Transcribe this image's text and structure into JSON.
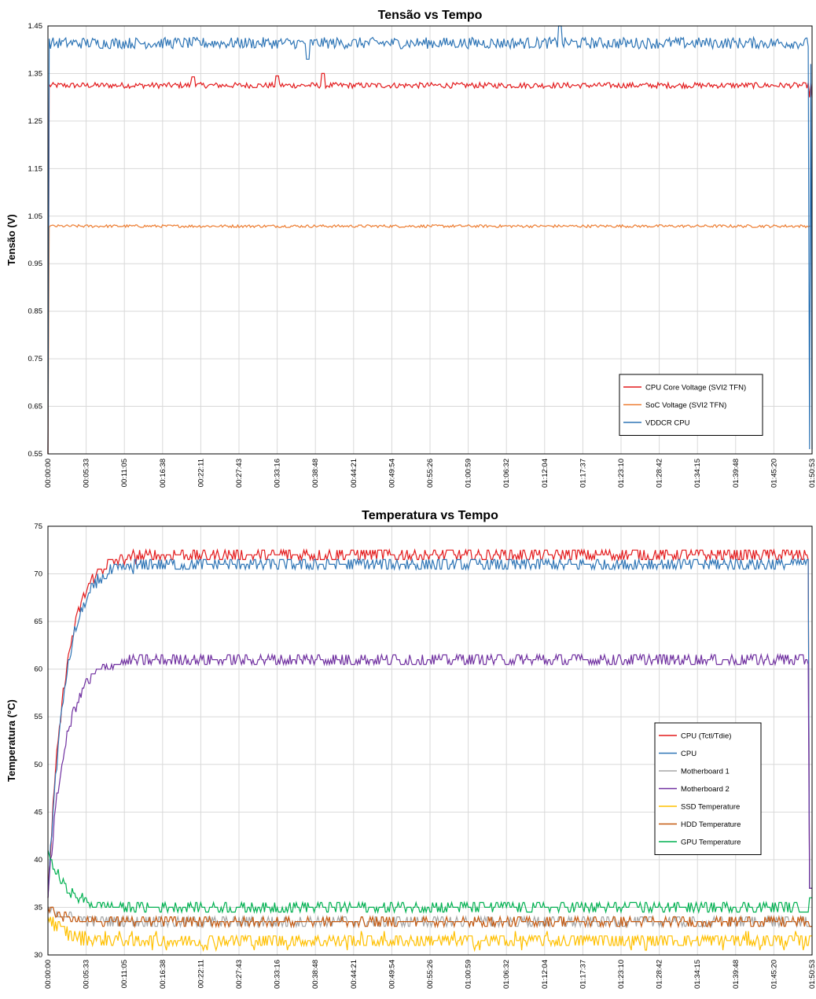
{
  "chart_data": [
    {
      "type": "line",
      "title": "Tensão vs Tempo",
      "ylabel": "Tensão (V)",
      "xlabel": "",
      "ylim": [
        0.55,
        1.45
      ],
      "yticks": [
        "1.45",
        "1.35",
        "1.25",
        "1.15",
        "1.05",
        "0.95",
        "0.85",
        "0.75",
        "0.65",
        "0.55"
      ],
      "xticks": [
        "00:00:00",
        "00:05:33",
        "00:11:05",
        "00:16:38",
        "00:22:11",
        "00:27:43",
        "00:33:16",
        "00:38:48",
        "00:44:21",
        "00:49:54",
        "00:55:26",
        "01:00:59",
        "01:06:32",
        "01:12:04",
        "01:17:37",
        "01:23:10",
        "01:28:42",
        "01:34:15",
        "01:39:48",
        "01:45:20",
        "01:50:53"
      ],
      "grid": true,
      "legend_position": "lower-right",
      "series": [
        {
          "name": "CPU Core Voltage (SVI2 TFN)",
          "color": "#e31a1c",
          "base": 1.325,
          "noise": 0.006,
          "spikes": [
            [
              0.3,
              1.345
            ],
            [
              0.19,
              1.343
            ],
            [
              0.36,
              1.35
            ]
          ],
          "end": [
            1.3,
            1.33
          ]
        },
        {
          "name": "SoC Voltage (SVI2 TFN)",
          "color": "#ed7d31",
          "base": 1.029,
          "noise": 0.003,
          "spikes": [],
          "end": [
            1.029,
            1.029
          ]
        },
        {
          "name": "VDDCR CPU",
          "color": "#2e75b6",
          "base": 1.414,
          "noise": 0.012,
          "spikes": [
            [
              0.34,
              1.38
            ],
            [
              0.67,
              1.45
            ]
          ],
          "end": [
            0.56,
            1.37
          ]
        }
      ]
    },
    {
      "type": "line",
      "title": "Temperatura vs Tempo",
      "ylabel": "Temperatura (°C)",
      "xlabel": "",
      "ylim": [
        30,
        75
      ],
      "yticks": [
        "75",
        "70",
        "65",
        "60",
        "55",
        "50",
        "45",
        "40",
        "35",
        "30"
      ],
      "xticks": [
        "00:00:00",
        "00:05:33",
        "00:11:05",
        "00:16:38",
        "00:22:11",
        "00:27:43",
        "00:33:16",
        "00:38:48",
        "00:44:21",
        "00:49:54",
        "00:55:26",
        "01:00:59",
        "01:06:32",
        "01:12:04",
        "01:17:37",
        "01:23:10",
        "01:28:42",
        "01:34:15",
        "01:39:48",
        "01:45:20",
        "01:50:53"
      ],
      "grid": true,
      "legend_position": "right",
      "series": [
        {
          "name": "CPU (Tctl/Tdie)",
          "color": "#e31a1c",
          "start": 36,
          "plateau": 72,
          "noise": 0.6,
          "end": 37
        },
        {
          "name": "CPU",
          "color": "#2e75b6",
          "start": 36,
          "plateau": 71,
          "noise": 0.7,
          "end": 37
        },
        {
          "name": "Motherboard 1",
          "color": "#a5a5a5",
          "start": 35,
          "plateau": 33.5,
          "noise": 0.5,
          "end": 33
        },
        {
          "name": "Motherboard 2",
          "color": "#7030a0",
          "start": 36,
          "plateau": 61,
          "noise": 0.6,
          "end": 37
        },
        {
          "name": "SSD Temperature",
          "color": "#ffc000",
          "start": 34,
          "plateau": 31.5,
          "noise": 0.8,
          "end": 32
        },
        {
          "name": "HDD Temperature",
          "color": "#c55a11",
          "start": 35,
          "plateau": 33.5,
          "noise": 0.4,
          "end": 33
        },
        {
          "name": "GPU Temperature",
          "color": "#00b050",
          "start": 41,
          "plateau": 35,
          "noise": 0.5,
          "end": 36
        }
      ]
    }
  ]
}
